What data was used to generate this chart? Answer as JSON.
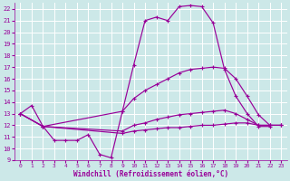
{
  "title": "",
  "xlabel": "Windchill (Refroidissement éolien,°C)",
  "ylabel": "",
  "background_color": "#cce8e8",
  "grid_color": "#ffffff",
  "line_color": "#990099",
  "xlim": [
    -0.5,
    23.5
  ],
  "ylim": [
    9,
    22.5
  ],
  "xticks": [
    0,
    1,
    2,
    3,
    4,
    5,
    6,
    7,
    8,
    9,
    10,
    11,
    12,
    13,
    14,
    15,
    16,
    17,
    18,
    19,
    20,
    21,
    22,
    23
  ],
  "yticks": [
    9,
    10,
    11,
    12,
    13,
    14,
    15,
    16,
    17,
    18,
    19,
    20,
    21,
    22
  ],
  "series": [
    {
      "x": [
        0,
        1,
        2,
        3,
        4,
        5,
        6,
        7,
        8,
        9,
        10,
        11,
        12,
        13,
        14,
        15,
        16,
        17,
        18,
        19,
        20,
        21,
        22
      ],
      "y": [
        13.0,
        13.7,
        11.9,
        10.7,
        10.7,
        10.7,
        11.2,
        9.5,
        9.2,
        13.2,
        17.2,
        21.0,
        21.3,
        21.0,
        22.2,
        22.3,
        22.2,
        20.8,
        16.8,
        14.5,
        13.0,
        11.9,
        11.9
      ]
    },
    {
      "x": [
        0,
        2,
        9,
        10,
        11,
        12,
        13,
        14,
        15,
        16,
        17,
        18,
        19,
        20,
        21,
        22,
        23
      ],
      "y": [
        13.0,
        11.9,
        13.2,
        14.3,
        15.0,
        15.5,
        16.0,
        16.5,
        16.8,
        16.9,
        17.0,
        16.9,
        16.0,
        14.5,
        12.9,
        12.0,
        12.0
      ]
    },
    {
      "x": [
        0,
        2,
        9,
        10,
        11,
        12,
        13,
        14,
        15,
        16,
        17,
        18,
        19,
        20,
        21,
        22,
        23
      ],
      "y": [
        13.0,
        11.9,
        11.5,
        12.0,
        12.2,
        12.5,
        12.7,
        12.9,
        13.0,
        13.1,
        13.2,
        13.3,
        13.0,
        12.5,
        12.0,
        12.0,
        12.0
      ]
    },
    {
      "x": [
        0,
        2,
        9,
        10,
        11,
        12,
        13,
        14,
        15,
        16,
        17,
        18,
        19,
        20,
        21,
        22,
        23
      ],
      "y": [
        13.0,
        11.9,
        11.3,
        11.5,
        11.6,
        11.7,
        11.8,
        11.8,
        11.9,
        12.0,
        12.0,
        12.1,
        12.2,
        12.2,
        12.0,
        12.0,
        12.0
      ]
    }
  ]
}
